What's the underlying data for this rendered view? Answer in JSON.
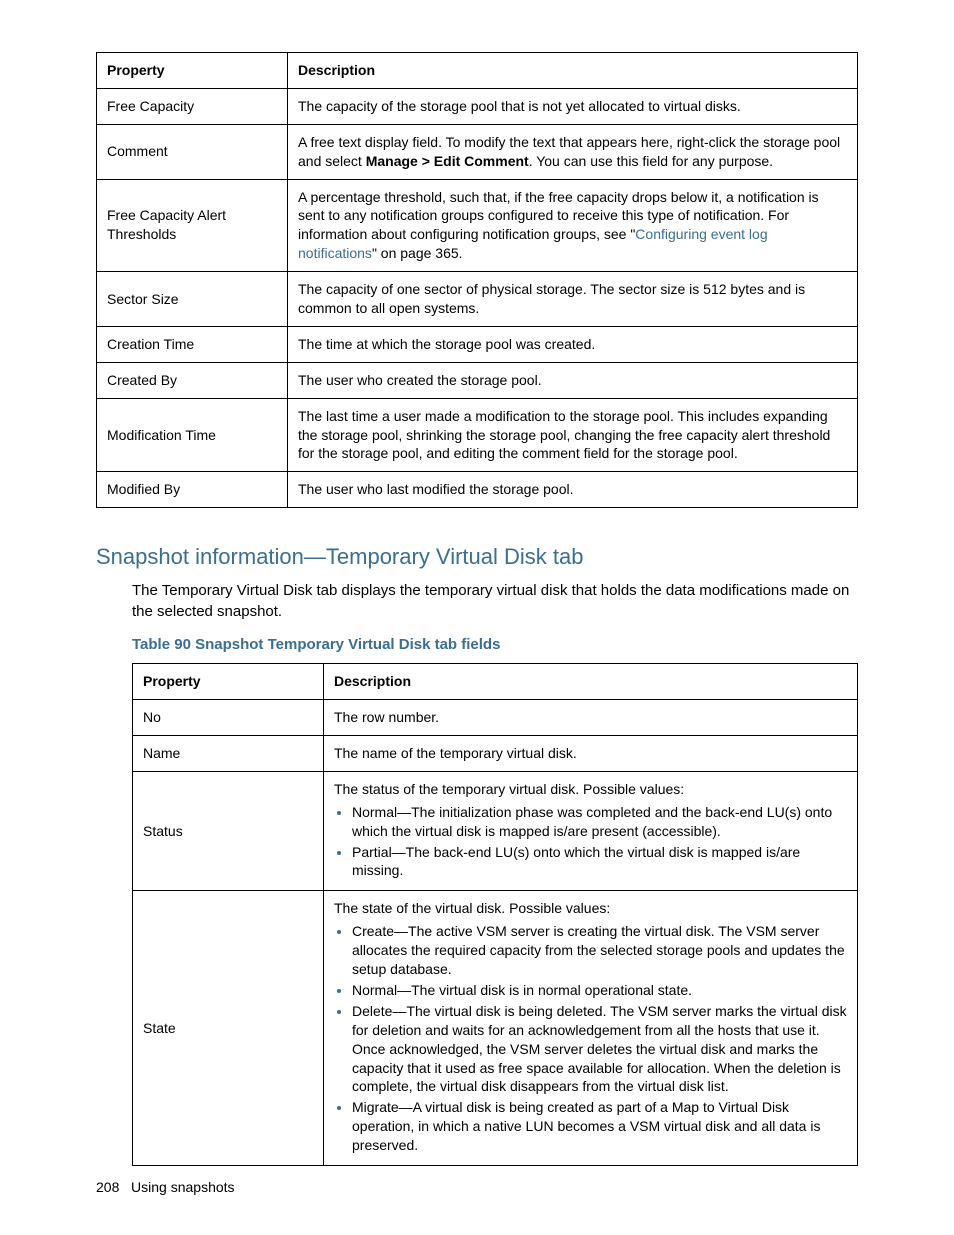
{
  "table1": {
    "headers": {
      "c1": "Property",
      "c2": "Description"
    },
    "rows": [
      {
        "prop": "Free Capacity",
        "desc": "The capacity of the storage pool that is not yet allocated to virtual disks."
      },
      {
        "prop": "Comment",
        "desc_pre": "A free text display field. To modify the text that appears here, right-click the storage pool and select ",
        "bold": "Manage > Edit Comment",
        "desc_post": ". You can use this field for any purpose."
      },
      {
        "prop": "Free Capacity Alert Thresholds",
        "desc_pre": "A percentage threshold, such that, if the free capacity drops below it, a notification is sent to any notification groups configured to receive this type of notification. For information about configuring notification groups, see \"",
        "link": "Configuring event log notifications",
        "desc_post": "\" on page 365."
      },
      {
        "prop": "Sector Size",
        "desc": "The capacity of one sector of physical storage. The sector size is 512 bytes and is common to all open systems."
      },
      {
        "prop": "Creation Time",
        "desc": "The time at which the storage pool was created."
      },
      {
        "prop": "Created By",
        "desc": "The user who created the storage pool."
      },
      {
        "prop": "Modification Time",
        "desc": "The last time a user made a modification to the storage pool. This includes expanding the storage pool, shrinking the storage pool, changing the free capacity alert threshold for the storage pool, and editing the comment field for the storage pool."
      },
      {
        "prop": "Modified By",
        "desc": "The user who last modified the storage pool."
      }
    ]
  },
  "heading": "Snapshot information—Temporary Virtual Disk tab",
  "paragraph": "The Temporary Virtual Disk tab displays the temporary virtual disk that holds the data modifications made on the selected snapshot.",
  "caption": "Table 90 Snapshot Temporary Virtual Disk tab fields",
  "table2": {
    "headers": {
      "c1": "Property",
      "c2": "Description"
    },
    "rows_simple": [
      {
        "prop": "No",
        "desc": "The row number."
      },
      {
        "prop": "Name",
        "desc": "The name of the temporary virtual disk."
      }
    ],
    "status": {
      "prop": "Status",
      "intro": "The status of the temporary virtual disk. Possible values:",
      "bullets": [
        "Normal—The initialization phase was completed and the back-end LU(s) onto which the virtual disk is mapped is/are present (accessible).",
        "Partial—The back-end LU(s) onto which the virtual disk is mapped is/are missing."
      ]
    },
    "state": {
      "prop": "State",
      "intro": "The state of the virtual disk. Possible values:",
      "bullets": [
        "Create—The active VSM server is creating the virtual disk. The VSM server allocates the required capacity from the selected storage pools and updates the setup database.",
        "Normal—The virtual disk is in normal operational state.",
        "Delete—The virtual disk is being deleted. The VSM server marks the virtual disk for deletion and waits for an acknowledgement from all the hosts that use it. Once acknowledged, the VSM server deletes the virtual disk and marks the capacity that it used as free space available for allocation. When the deletion is complete, the virtual disk disappears from the virtual disk list.",
        "Migrate—A virtual disk is being created as part of a Map to Virtual Disk operation, in which a native LUN becomes a VSM virtual disk and all data is preserved."
      ]
    }
  },
  "footer": {
    "page": "208",
    "section": "Using snapshots"
  }
}
